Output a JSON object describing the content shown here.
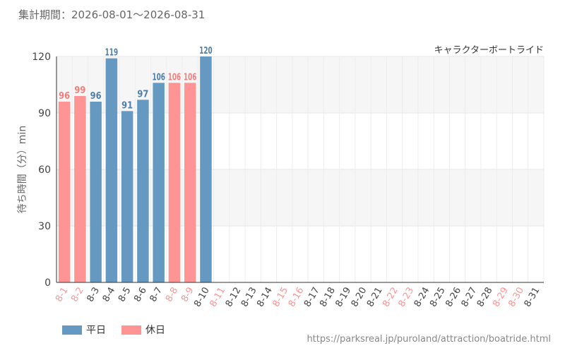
{
  "header": {
    "period": "集計期間：2026-08-01～2026-08-31"
  },
  "footer": {
    "source_url": "https://parksreal.jp/puroland/attraction/boatride.html"
  },
  "legend": {
    "items": [
      {
        "label": "平日",
        "color": "#6699c2"
      },
      {
        "label": "休日",
        "color": "#ff9494"
      }
    ]
  },
  "colors": {
    "weekday": "#6699c2",
    "holiday": "#ff9494",
    "weekday_label": "#4f7fa8",
    "holiday_label": "#f07e7e",
    "axis_text": "#444444"
  },
  "chart_data": {
    "type": "bar",
    "title": "キャラクターボートライド",
    "ylabel": "待ち時間（分）min",
    "xlabel": "",
    "ylim": [
      0,
      120
    ],
    "yticks": [
      0,
      30,
      60,
      90,
      120
    ],
    "grid": true,
    "legend_position": "bottom-left",
    "categories": [
      "8-1",
      "8-2",
      "8-3",
      "8-4",
      "8-5",
      "8-6",
      "8-7",
      "8-8",
      "8-9",
      "8-10",
      "8-11",
      "8-12",
      "8-13",
      "8-14",
      "8-15",
      "8-16",
      "8-17",
      "8-18",
      "8-19",
      "8-20",
      "8-21",
      "8-22",
      "8-23",
      "8-24",
      "8-25",
      "8-26",
      "8-27",
      "8-28",
      "8-29",
      "8-30",
      "8-31"
    ],
    "values": [
      96,
      99,
      96,
      119,
      91,
      97,
      106,
      106,
      106,
      120,
      null,
      null,
      null,
      null,
      null,
      null,
      null,
      null,
      null,
      null,
      null,
      null,
      null,
      null,
      null,
      null,
      null,
      null,
      null,
      null,
      null
    ],
    "day_type": [
      "休日",
      "休日",
      "平日",
      "平日",
      "平日",
      "平日",
      "平日",
      "休日",
      "休日",
      "平日",
      "休日",
      "平日",
      "平日",
      "平日",
      "休日",
      "休日",
      "平日",
      "平日",
      "平日",
      "平日",
      "平日",
      "休日",
      "休日",
      "平日",
      "平日",
      "平日",
      "平日",
      "平日",
      "休日",
      "休日",
      "平日"
    ]
  }
}
